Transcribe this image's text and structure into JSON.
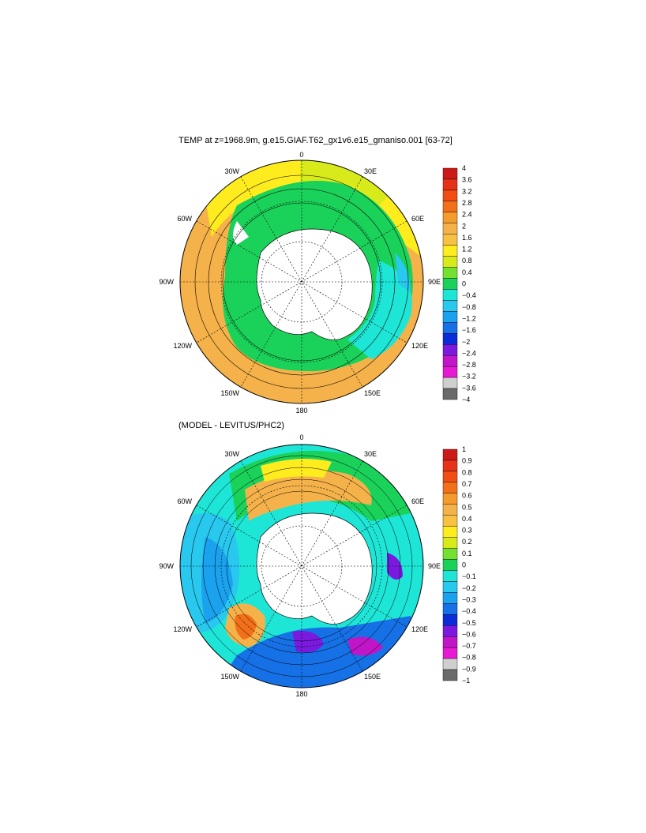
{
  "top_panel": {
    "title": "TEMP at z=1968.9m, g.e15.GIAF.T62_gx1v6.e15_gmaniso.001 [63-72]",
    "colorbar": {
      "labels": [
        "4",
        "3.6",
        "3.2",
        "2.8",
        "2.4",
        "2",
        "1.6",
        "1.2",
        "0.8",
        "0.4",
        "0",
        "−0.4",
        "−0.8",
        "−1.2",
        "−1.6",
        "−2",
        "−2.4",
        "−2.8",
        "−3.2",
        "−3.6",
        "−4"
      ],
      "colors": [
        "#cc1a1a",
        "#e63219",
        "#f04e14",
        "#f2701a",
        "#f59a2d",
        "#f5b24a",
        "#f7c243",
        "#ffec1f",
        "#d8ea1a",
        "#74e030",
        "#1ad25a",
        "#1ee6d6",
        "#28c8ef",
        "#1aa2ef",
        "#1670e6",
        "#0c2cd8",
        "#7a1adf",
        "#c016c8",
        "#e61ad5",
        "#cfcfcf",
        "#6a6a6a"
      ]
    }
  },
  "bottom_panel": {
    "title": "(MODEL - LEVITUS/PHC2)",
    "colorbar": {
      "labels": [
        "1",
        "0.9",
        "0.8",
        "0.7",
        "0.6",
        "0.5",
        "0.4",
        "0.3",
        "0.2",
        "0.1",
        "0",
        "−0.1",
        "−0.2",
        "−0.3",
        "−0.4",
        "−0.5",
        "−0.6",
        "−0.7",
        "−0.8",
        "−0.9",
        "−1"
      ],
      "colors": [
        "#cc1a1a",
        "#e63219",
        "#f04e14",
        "#f2701a",
        "#f59a2d",
        "#f5b24a",
        "#f7c243",
        "#ffec1f",
        "#d8ea1a",
        "#74e030",
        "#1ad25a",
        "#1ee6d6",
        "#28c8ef",
        "#1aa2ef",
        "#1670e6",
        "#0c2cd8",
        "#7a1adf",
        "#c016c8",
        "#e61ad5",
        "#cfcfcf",
        "#6a6a6a"
      ]
    }
  },
  "longitude_labels": [
    "0",
    "30E",
    "60E",
    "90E",
    "120E",
    "150E",
    "180",
    "150W",
    "120W",
    "90W",
    "60W",
    "30W"
  ]
}
